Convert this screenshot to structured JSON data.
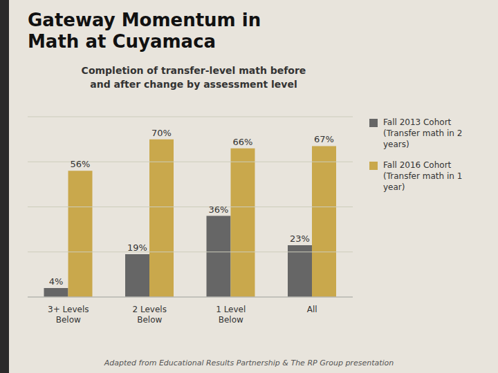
{
  "chart_data": {
    "type": "bar",
    "title": "Gateway Momentum in\nMath at Cuyamaca",
    "subtitle": "Completion of transfer-level math before\nand after change by assessment level",
    "annotations": [
      "Adapted from Educational Results Partnership & The RP Group presentation"
    ],
    "categories": [
      "3+ Levels\nBelow",
      "2 Levels\nBelow",
      "1 Level\nBelow",
      "All"
    ],
    "series": [
      {
        "name": "Fall 2013 Cohort\n(Transfer math in 2\nyears)",
        "color": "#666666",
        "values": [
          4,
          19,
          36,
          23
        ],
        "value_labels": [
          "4%",
          "19%",
          "36%",
          "23%"
        ]
      },
      {
        "name": "Fall 2016 Cohort\n(Transfer math in 1\nyear)",
        "color": "#C9A84C",
        "values": [
          56,
          70,
          66,
          67
        ],
        "value_labels": [
          "56%",
          "70%",
          "66%",
          "67%"
        ]
      }
    ],
    "ylim": [
      0,
      80
    ],
    "yticks": [
      0,
      20,
      40,
      60,
      80
    ],
    "grid": true,
    "legend": "upper right",
    "data_labels": true,
    "tick_labels": "x"
  }
}
